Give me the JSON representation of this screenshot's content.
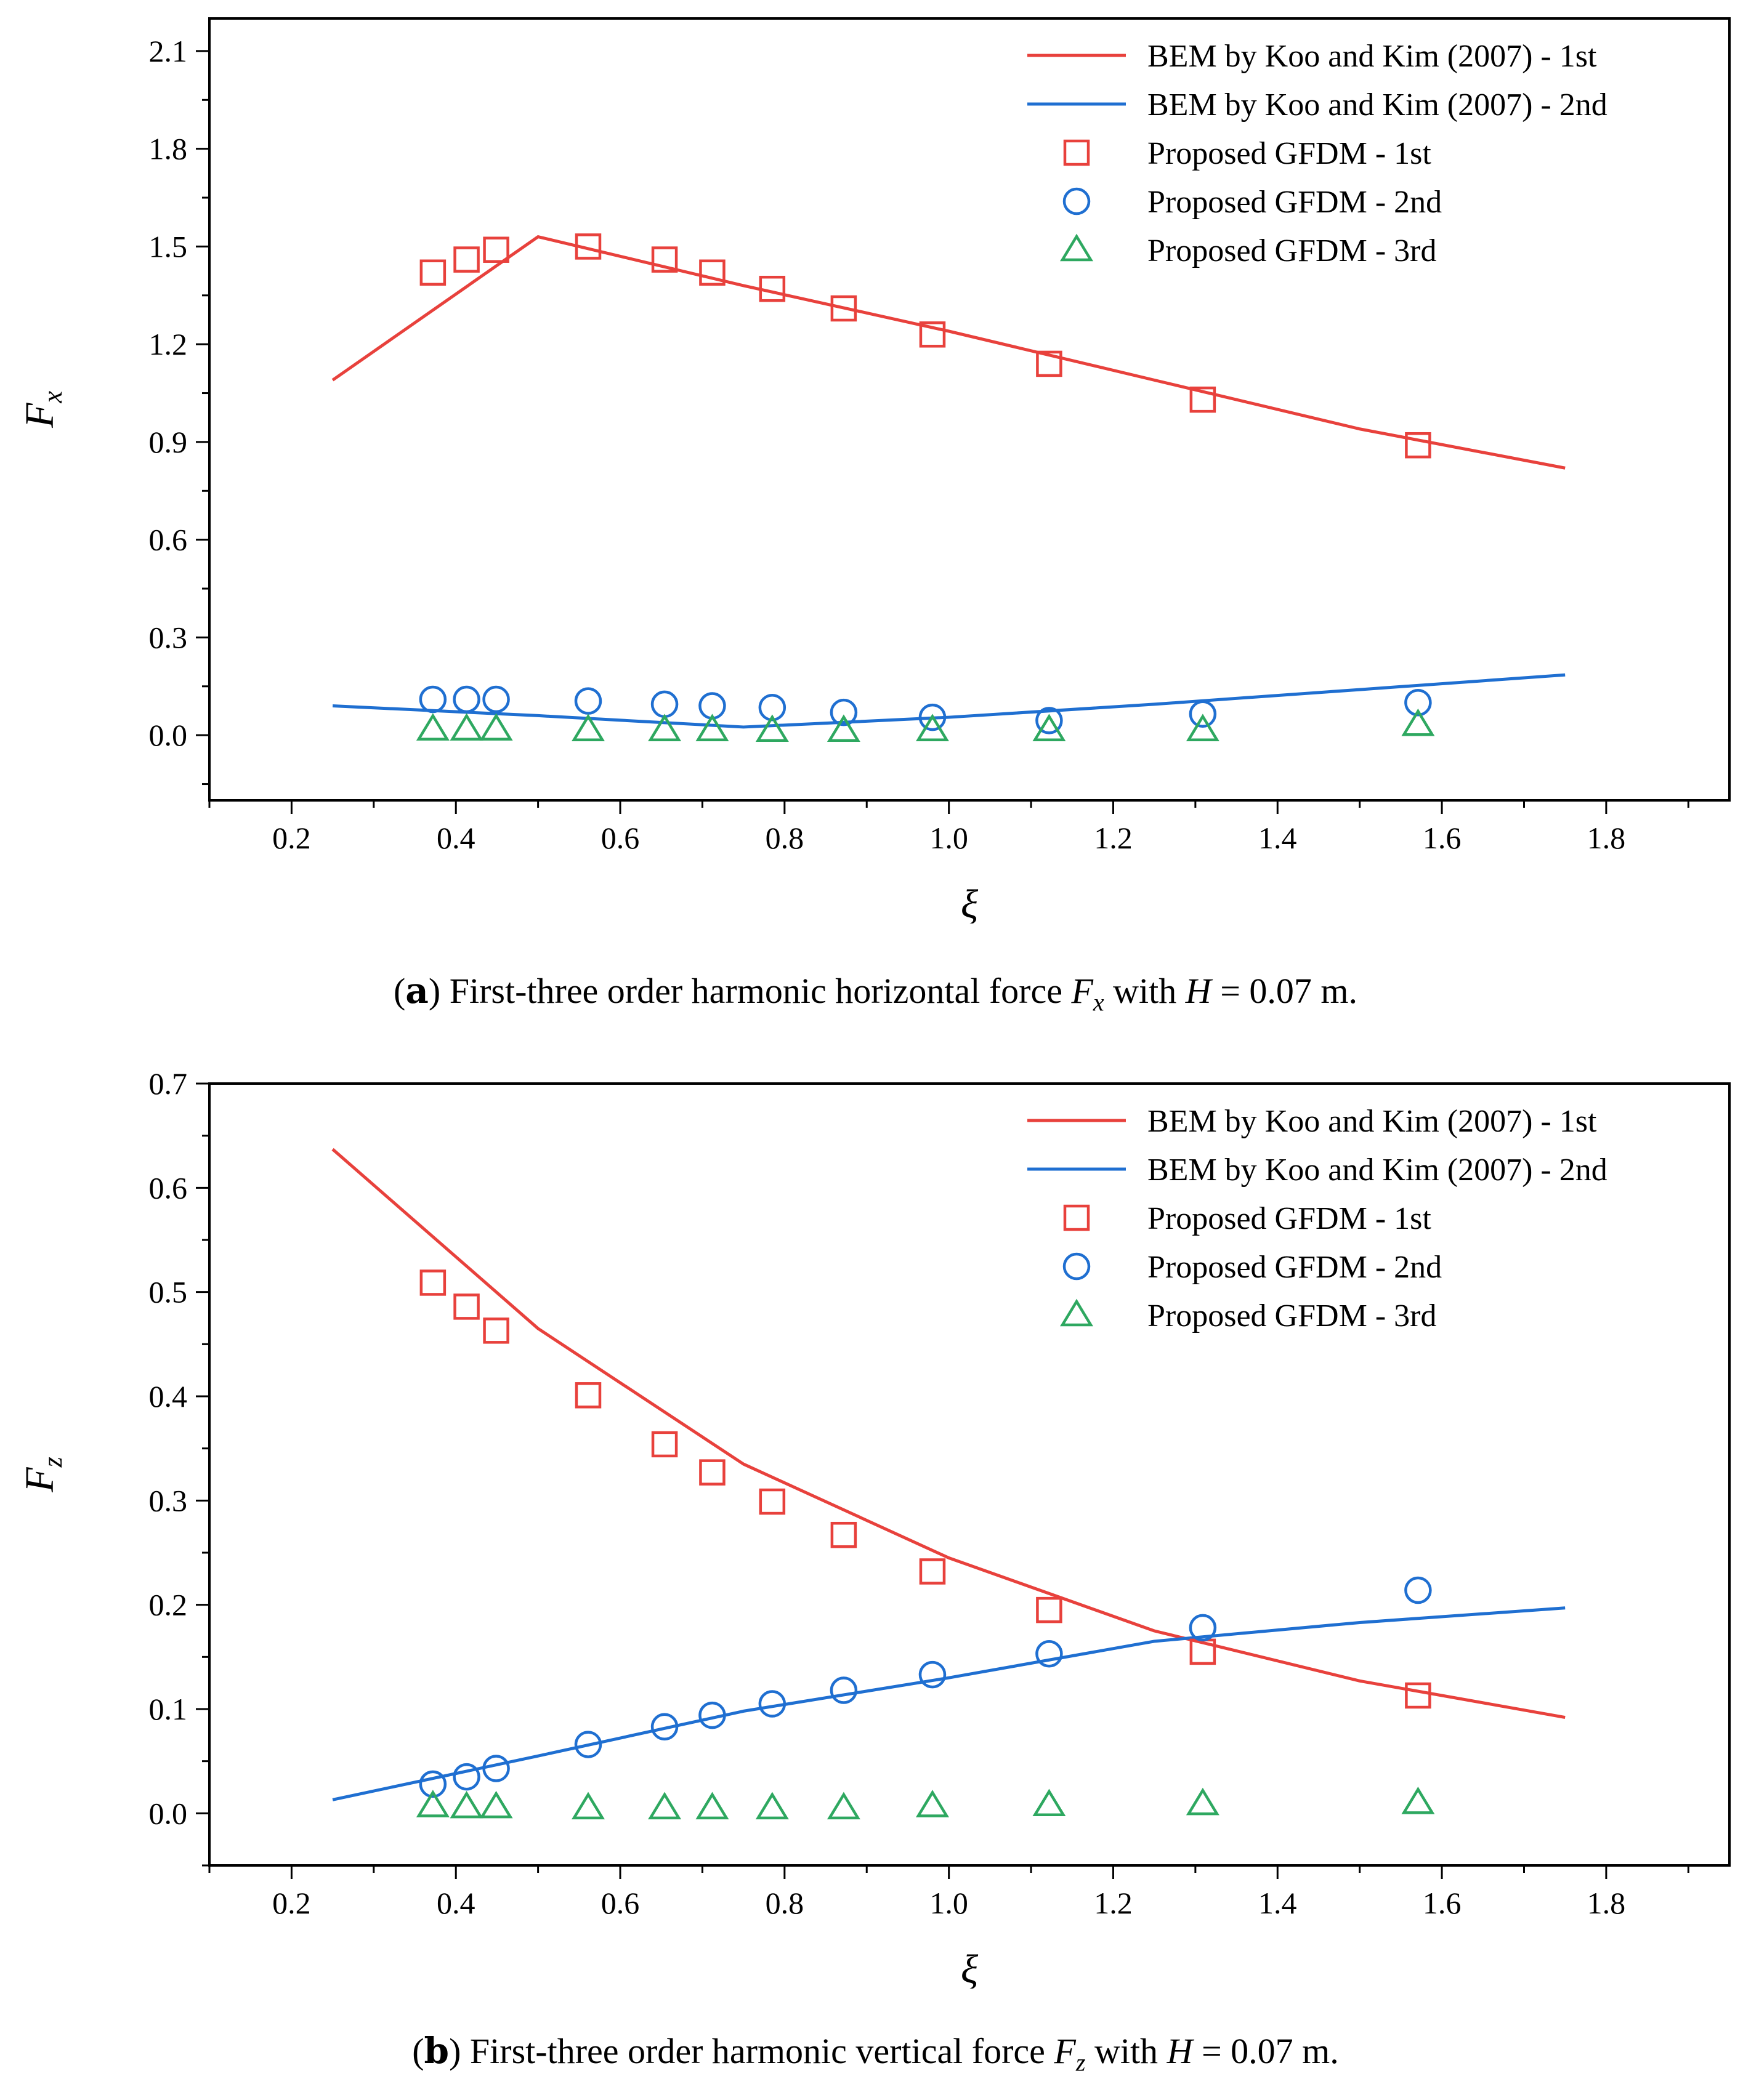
{
  "chart_data": [
    {
      "type": "line",
      "panel_label": "a",
      "caption_text": "First-three order harmonic horizontal force",
      "caption_symbol": "F",
      "caption_symbol_sub": "x",
      "caption_with": "with",
      "caption_condition": "H",
      "caption_equals": "=",
      "caption_value": "0.07 m.",
      "xlabel": "ξ",
      "ylabel": "F",
      "ylabel_sub": "x",
      "xlim": [
        0.1,
        1.95
      ],
      "ylim": [
        -0.2,
        2.2
      ],
      "x_ticks": [
        "0.2",
        "0.4",
        "0.6",
        "0.8",
        "1.0",
        "1.2",
        "1.4",
        "1.6",
        "1.8"
      ],
      "y_ticks": [
        "0.0",
        "0.3",
        "0.6",
        "0.9",
        "1.2",
        "1.5",
        "1.8",
        "2.1"
      ],
      "legend_position": "top-right",
      "series": [
        {
          "name": "BEM by Koo and Kim (2007) - 1st",
          "kind": "line",
          "color": "#e8413c",
          "x": [
            0.25,
            0.5,
            0.75,
            1.0,
            1.25,
            1.5,
            1.75
          ],
          "y": [
            1.09,
            1.53,
            1.38,
            1.24,
            1.09,
            0.94,
            0.82
          ]
        },
        {
          "name": "BEM by Koo and Kim (2007) - 2nd",
          "kind": "line",
          "color": "#1f6fd1",
          "x": [
            0.25,
            0.5,
            0.75,
            1.0,
            1.25,
            1.5,
            1.75
          ],
          "y": [
            0.09,
            0.06,
            0.025,
            0.055,
            0.095,
            0.14,
            0.185
          ]
        },
        {
          "name": "Proposed GFDM - 1st",
          "kind": "square",
          "color": "#e8413c",
          "x": [
            0.372,
            0.413,
            0.449,
            0.561,
            0.654,
            0.712,
            0.785,
            0.872,
            0.98,
            1.122,
            1.309,
            1.571
          ],
          "y": [
            1.42,
            1.46,
            1.49,
            1.5,
            1.46,
            1.42,
            1.37,
            1.31,
            1.23,
            1.14,
            1.03,
            0.89
          ]
        },
        {
          "name": "Proposed GFDM - 2nd",
          "kind": "circle",
          "color": "#1f6fd1",
          "x": [
            0.372,
            0.413,
            0.449,
            0.561,
            0.654,
            0.712,
            0.785,
            0.872,
            0.98,
            1.122,
            1.309,
            1.571
          ],
          "y": [
            0.11,
            0.11,
            0.11,
            0.105,
            0.095,
            0.09,
            0.085,
            0.07,
            0.055,
            0.045,
            0.065,
            0.1
          ]
        },
        {
          "name": "Proposed GFDM - 3rd",
          "kind": "triangle",
          "color": "#2ea860",
          "x": [
            0.372,
            0.413,
            0.449,
            0.561,
            0.654,
            0.712,
            0.785,
            0.872,
            0.98,
            1.122,
            1.309,
            1.571
          ],
          "y": [
            0.018,
            0.018,
            0.018,
            0.016,
            0.016,
            0.016,
            0.014,
            0.014,
            0.016,
            0.016,
            0.016,
            0.032
          ]
        }
      ]
    },
    {
      "type": "line",
      "panel_label": "b",
      "caption_text": "First-three order harmonic vertical force",
      "caption_symbol": "F",
      "caption_symbol_sub": "z",
      "caption_with": "with",
      "caption_condition": "H",
      "caption_equals": "=",
      "caption_value": "0.07 m.",
      "xlabel": "ξ",
      "ylabel": "F",
      "ylabel_sub": "z",
      "xlim": [
        0.1,
        1.95
      ],
      "ylim": [
        -0.05,
        0.7
      ],
      "x_ticks": [
        "0.2",
        "0.4",
        "0.6",
        "0.8",
        "1.0",
        "1.2",
        "1.4",
        "1.6",
        "1.8"
      ],
      "y_ticks": [
        "0.0",
        "0.1",
        "0.2",
        "0.3",
        "0.4",
        "0.5",
        "0.6",
        "0.7"
      ],
      "legend_position": "top-right",
      "series": [
        {
          "name": "BEM by Koo and Kim (2007) - 1st",
          "kind": "line",
          "color": "#e8413c",
          "x": [
            0.25,
            0.5,
            0.75,
            1.0,
            1.25,
            1.5,
            1.75
          ],
          "y": [
            0.637,
            0.465,
            0.335,
            0.245,
            0.175,
            0.127,
            0.092
          ]
        },
        {
          "name": "BEM by Koo and Kim (2007) - 2nd",
          "kind": "line",
          "color": "#1f6fd1",
          "x": [
            0.25,
            0.5,
            0.75,
            1.0,
            1.25,
            1.5,
            1.75
          ],
          "y": [
            0.013,
            0.055,
            0.098,
            0.13,
            0.165,
            0.183,
            0.197
          ]
        },
        {
          "name": "Proposed GFDM - 1st",
          "kind": "square",
          "color": "#e8413c",
          "x": [
            0.372,
            0.413,
            0.449,
            0.561,
            0.654,
            0.712,
            0.785,
            0.872,
            0.98,
            1.122,
            1.309,
            1.571
          ],
          "y": [
            0.509,
            0.486,
            0.463,
            0.401,
            0.354,
            0.327,
            0.299,
            0.267,
            0.232,
            0.195,
            0.155,
            0.113
          ]
        },
        {
          "name": "Proposed GFDM - 2nd",
          "kind": "circle",
          "color": "#1f6fd1",
          "x": [
            0.372,
            0.413,
            0.449,
            0.561,
            0.654,
            0.712,
            0.785,
            0.872,
            0.98,
            1.122,
            1.309,
            1.571
          ],
          "y": [
            0.028,
            0.035,
            0.043,
            0.066,
            0.083,
            0.094,
            0.105,
            0.118,
            0.133,
            0.153,
            0.178,
            0.214
          ]
        },
        {
          "name": "Proposed GFDM - 3rd",
          "kind": "triangle",
          "color": "#2ea860",
          "x": [
            0.372,
            0.413,
            0.449,
            0.561,
            0.654,
            0.712,
            0.785,
            0.872,
            0.98,
            1.122,
            1.309,
            1.571
          ],
          "y": [
            0.007,
            0.006,
            0.006,
            0.005,
            0.005,
            0.005,
            0.005,
            0.005,
            0.007,
            0.008,
            0.009,
            0.01
          ]
        }
      ]
    }
  ]
}
